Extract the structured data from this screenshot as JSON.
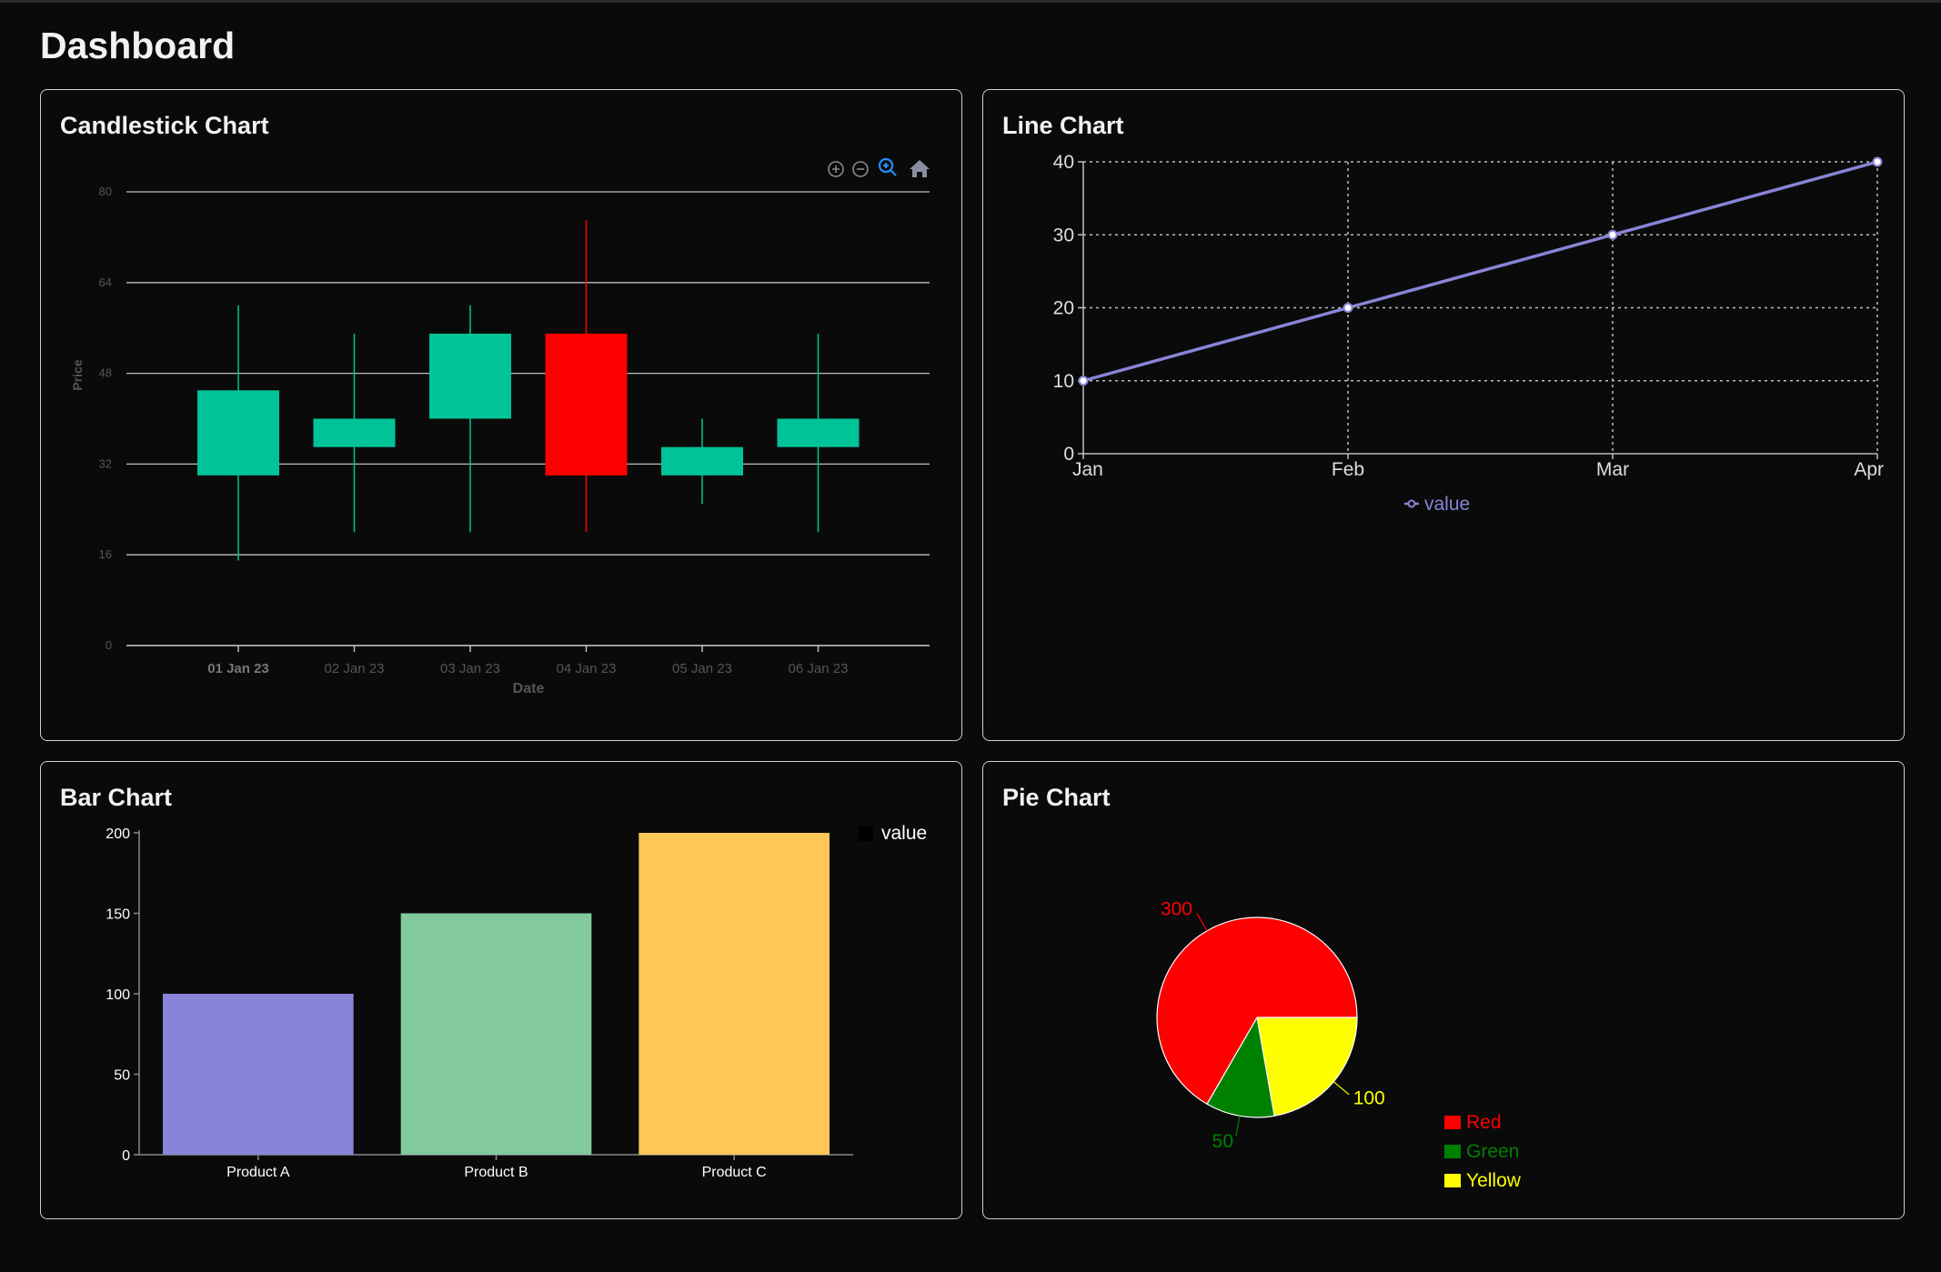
{
  "page": {
    "title": "Dashboard"
  },
  "cards": {
    "candlestick": {
      "title": "Candlestick Chart"
    },
    "line": {
      "title": "Line Chart"
    },
    "bar": {
      "title": "Bar Chart"
    },
    "pie": {
      "title": "Pie Chart"
    }
  },
  "toolbar": [
    {
      "name": "zoom-in-icon",
      "icon": "zoom-in"
    },
    {
      "name": "zoom-out-icon",
      "icon": "zoom-out"
    },
    {
      "name": "zoom-select-icon",
      "icon": "magnifier"
    },
    {
      "name": "reset-home-icon",
      "icon": "home"
    }
  ],
  "chart_data": [
    {
      "id": "candlestick",
      "type": "candlestick",
      "xlabel": "Date",
      "ylabel": "Price",
      "ylim": [
        0,
        80
      ],
      "yticks": [
        0,
        16,
        32,
        48,
        64,
        80
      ],
      "grid": true,
      "colors": {
        "up": "#00c497",
        "down": "#ff0000",
        "grid": "#bdbdbd",
        "axis_text": "#555555"
      },
      "categories": [
        "01 Jan 23",
        "02 Jan 23",
        "03 Jan 23",
        "04 Jan 23",
        "05 Jan 23",
        "06 Jan 23"
      ],
      "series": [
        {
          "x": "01 Jan 23",
          "open": 30,
          "high": 60,
          "low": 15,
          "close": 45
        },
        {
          "x": "02 Jan 23",
          "open": 35,
          "high": 55,
          "low": 20,
          "close": 40
        },
        {
          "x": "03 Jan 23",
          "open": 40,
          "high": 60,
          "low": 20,
          "close": 55
        },
        {
          "x": "04 Jan 23",
          "open": 55,
          "high": 75,
          "low": 20,
          "close": 30
        },
        {
          "x": "05 Jan 23",
          "open": 30,
          "high": 40,
          "low": 25,
          "close": 35
        },
        {
          "x": "06 Jan 23",
          "open": 35,
          "high": 55,
          "low": 20,
          "close": 40
        }
      ]
    },
    {
      "id": "line",
      "type": "line",
      "categories": [
        "Jan",
        "Feb",
        "Mar",
        "Apr"
      ],
      "series": [
        {
          "name": "value",
          "values": [
            10,
            20,
            30,
            40
          ],
          "color": "#8884d8"
        }
      ],
      "ylim": [
        0,
        40
      ],
      "yticks": [
        0,
        10,
        20,
        30,
        40
      ],
      "grid": true,
      "legend": "bottom-center"
    },
    {
      "id": "bar",
      "type": "bar",
      "categories": [
        "Product A",
        "Product B",
        "Product C"
      ],
      "series": [
        {
          "name": "value",
          "values": [
            100,
            150,
            200
          ]
        }
      ],
      "colors": [
        "#8884d8",
        "#82ca9d",
        "#ffc658"
      ],
      "ylim": [
        0,
        200
      ],
      "yticks": [
        0,
        50,
        100,
        150,
        200
      ],
      "grid": false,
      "legend": "top-right"
    },
    {
      "id": "pie",
      "type": "pie",
      "labels": [
        "Red",
        "Green",
        "Yellow"
      ],
      "values": [
        300,
        50,
        100
      ],
      "colors": [
        "#ff0000",
        "#008000",
        "#ffff00"
      ],
      "legend": "bottom-right"
    }
  ]
}
